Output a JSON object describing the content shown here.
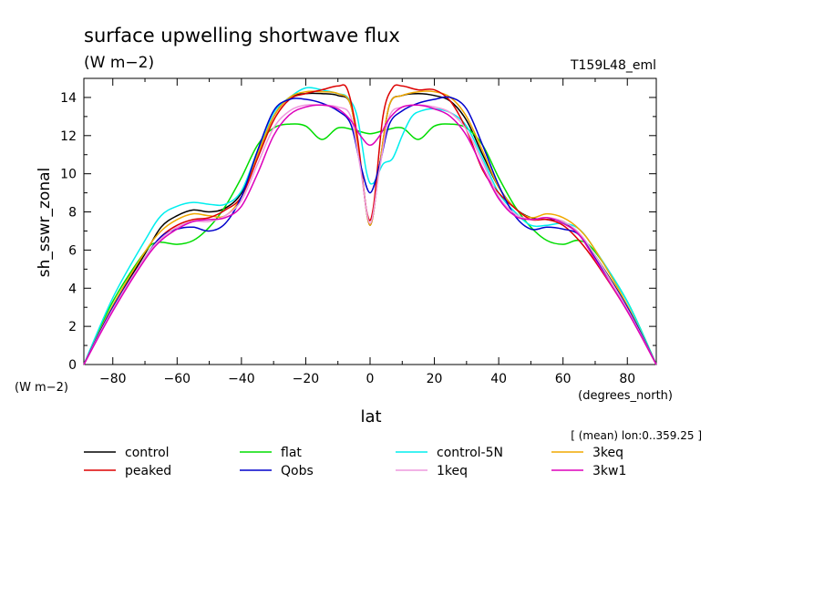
{
  "chart_data": {
    "type": "line",
    "title": "surface upwelling shortwave flux",
    "units": "(W m−2)",
    "run_label": "T159L48_eml",
    "ylabel": "sh_sswr_zonal",
    "yunits_label": "(W m−2)",
    "xlabel": "lat",
    "xunits_label": "(degrees_north)",
    "subset_note": "[ (mean) lon:0..359.25 ]",
    "xlim": [
      -89,
      89
    ],
    "ylim": [
      0,
      15
    ],
    "xticks": [
      -80,
      -60,
      -40,
      -20,
      0,
      20,
      40,
      60,
      80
    ],
    "yticks": [
      0,
      2,
      4,
      6,
      8,
      10,
      12,
      14
    ],
    "grid": false,
    "legend_position": "bottom",
    "series": [
      {
        "name": "control",
        "color": "#000000",
        "x": [
          -89,
          -80,
          -70,
          -65,
          -60,
          -55,
          -50,
          -45,
          -40,
          -35,
          -30,
          -25,
          -20,
          -15,
          -10,
          -6,
          -3,
          0,
          3,
          6,
          10,
          15,
          20,
          25,
          30,
          35,
          40,
          45,
          50,
          55,
          60,
          65,
          70,
          80,
          89
        ],
        "y": [
          0,
          3.0,
          5.8,
          7.2,
          7.8,
          8.1,
          8.0,
          8.2,
          9.0,
          11.0,
          13.0,
          14.0,
          14.2,
          14.2,
          14.1,
          13.6,
          10.5,
          7.3,
          10.5,
          13.6,
          14.1,
          14.2,
          14.1,
          13.8,
          12.8,
          11.0,
          9.3,
          8.2,
          7.7,
          7.6,
          7.5,
          6.8,
          5.7,
          3.0,
          0
        ]
      },
      {
        "name": "flat",
        "color": "#00dd00",
        "x": [
          -89,
          -80,
          -70,
          -66,
          -60,
          -55,
          -50,
          -45,
          -40,
          -35,
          -30,
          -25,
          -20,
          -15,
          -10,
          -5,
          0,
          5,
          10,
          15,
          20,
          25,
          30,
          35,
          40,
          45,
          50,
          55,
          60,
          65,
          70,
          80,
          89
        ],
        "y": [
          0,
          3.3,
          5.9,
          6.4,
          6.3,
          6.5,
          7.2,
          8.3,
          9.8,
          11.5,
          12.4,
          12.6,
          12.5,
          11.8,
          12.4,
          12.3,
          12.1,
          12.3,
          12.4,
          11.8,
          12.5,
          12.6,
          12.4,
          11.5,
          9.8,
          8.3,
          7.2,
          6.5,
          6.3,
          6.5,
          5.9,
          3.3,
          0
        ]
      },
      {
        "name": "control-5N",
        "color": "#00eeee",
        "x": [
          -89,
          -80,
          -70,
          -65,
          -60,
          -55,
          -50,
          -45,
          -40,
          -35,
          -30,
          -25,
          -20,
          -15,
          -10,
          -7,
          -4,
          -1,
          1,
          4,
          7,
          10,
          13,
          16,
          20,
          25,
          30,
          35,
          40,
          45,
          50,
          55,
          60,
          65,
          70,
          80,
          89
        ],
        "y": [
          0,
          3.5,
          6.5,
          7.8,
          8.3,
          8.5,
          8.4,
          8.4,
          9.1,
          11.2,
          13.2,
          14.0,
          14.5,
          14.4,
          14.2,
          14.0,
          13.0,
          10.0,
          9.5,
          10.5,
          10.8,
          12.0,
          13.0,
          13.3,
          13.4,
          13.2,
          12.5,
          10.8,
          9.0,
          8.0,
          7.3,
          7.3,
          7.4,
          7.1,
          6.0,
          3.3,
          0
        ]
      },
      {
        "name": "3keq",
        "color": "#f0a800",
        "x": [
          -89,
          -80,
          -70,
          -65,
          -60,
          -55,
          -50,
          -45,
          -40,
          -35,
          -30,
          -25,
          -20,
          -15,
          -10,
          -6,
          -3,
          0,
          3,
          6,
          10,
          15,
          20,
          25,
          30,
          35,
          40,
          45,
          50,
          55,
          60,
          65,
          70,
          80,
          89
        ],
        "y": [
          0,
          3.1,
          5.9,
          7.0,
          7.6,
          7.9,
          7.8,
          7.8,
          8.8,
          11.0,
          13.0,
          14.0,
          14.3,
          14.3,
          14.2,
          13.6,
          10.5,
          7.3,
          10.5,
          13.6,
          14.1,
          14.3,
          14.3,
          14.0,
          13.0,
          11.2,
          9.3,
          8.2,
          7.7,
          7.9,
          7.7,
          7.1,
          6.0,
          3.1,
          0
        ]
      },
      {
        "name": "peaked",
        "color": "#dd0000",
        "x": [
          -89,
          -80,
          -70,
          -65,
          -60,
          -55,
          -50,
          -45,
          -40,
          -35,
          -30,
          -25,
          -20,
          -15,
          -10,
          -7,
          -4,
          -1,
          1,
          4,
          7,
          10,
          15,
          20,
          25,
          30,
          35,
          40,
          45,
          50,
          55,
          60,
          65,
          70,
          80,
          89
        ],
        "y": [
          0,
          3.0,
          5.6,
          6.7,
          7.3,
          7.6,
          7.7,
          8.1,
          8.8,
          10.8,
          12.8,
          13.9,
          14.2,
          14.4,
          14.6,
          14.4,
          12.0,
          8.0,
          8.2,
          13.0,
          14.5,
          14.6,
          14.4,
          14.4,
          13.8,
          12.3,
          10.2,
          9.0,
          8.2,
          7.6,
          7.6,
          7.3,
          6.5,
          5.4,
          2.8,
          0
        ]
      },
      {
        "name": "Qobs",
        "color": "#0000cc",
        "x": [
          -89,
          -80,
          -70,
          -65,
          -60,
          -55,
          -50,
          -45,
          -40,
          -35,
          -30,
          -25,
          -20,
          -15,
          -10,
          -6,
          -3,
          0,
          3,
          6,
          10,
          15,
          20,
          25,
          30,
          35,
          40,
          45,
          50,
          55,
          60,
          65,
          70,
          80,
          89
        ],
        "y": [
          0,
          3.0,
          5.6,
          6.7,
          7.1,
          7.2,
          7.0,
          7.4,
          8.8,
          11.2,
          13.3,
          13.9,
          13.9,
          13.7,
          13.3,
          12.6,
          10.5,
          9.0,
          10.5,
          12.6,
          13.3,
          13.7,
          13.9,
          14.0,
          13.4,
          11.5,
          9.4,
          7.8,
          7.1,
          7.2,
          7.1,
          6.8,
          5.6,
          3.0,
          0
        ]
      },
      {
        "name": "1keq",
        "color": "#ee99dd",
        "x": [
          -89,
          -80,
          -70,
          -65,
          -60,
          -55,
          -50,
          -45,
          -40,
          -35,
          -30,
          -25,
          -20,
          -15,
          -10,
          -6,
          -3,
          0,
          3,
          6,
          10,
          15,
          20,
          25,
          30,
          35,
          40,
          45,
          50,
          55,
          60,
          65,
          70,
          80,
          89
        ],
        "y": [
          0,
          2.9,
          5.6,
          6.6,
          7.2,
          7.5,
          7.5,
          7.8,
          8.6,
          10.5,
          12.4,
          13.3,
          13.6,
          13.6,
          13.5,
          13.0,
          10.3,
          7.4,
          10.3,
          13.0,
          13.5,
          13.6,
          13.5,
          13.2,
          12.3,
          10.6,
          8.8,
          7.9,
          7.6,
          7.7,
          7.5,
          6.9,
          5.7,
          2.9,
          0
        ]
      },
      {
        "name": "3kw1",
        "color": "#dd00bb",
        "x": [
          -89,
          -80,
          -70,
          -65,
          -60,
          -55,
          -50,
          -45,
          -40,
          -35,
          -30,
          -25,
          -20,
          -15,
          -10,
          -6,
          -3,
          0,
          3,
          6,
          10,
          15,
          20,
          25,
          30,
          35,
          40,
          45,
          50,
          55,
          60,
          65,
          70,
          80,
          89
        ],
        "y": [
          0,
          2.8,
          5.5,
          6.5,
          7.1,
          7.5,
          7.6,
          7.7,
          8.3,
          10.0,
          12.0,
          13.1,
          13.5,
          13.6,
          13.4,
          12.8,
          12.0,
          11.5,
          12.0,
          12.9,
          13.5,
          13.6,
          13.4,
          13.0,
          12.0,
          10.3,
          8.7,
          7.8,
          7.6,
          7.7,
          7.4,
          6.8,
          5.5,
          2.8,
          0
        ]
      }
    ]
  }
}
